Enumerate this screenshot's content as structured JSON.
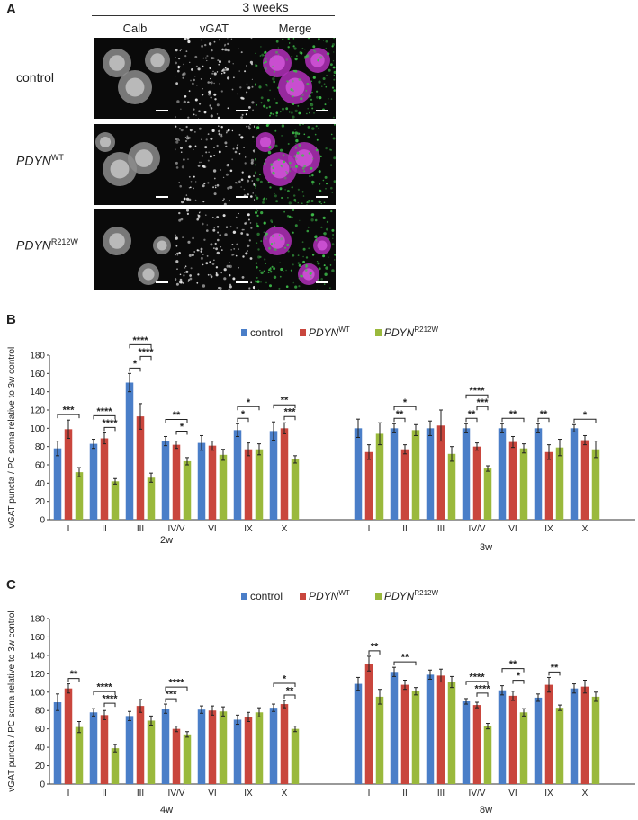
{
  "panelA": {
    "letter": "A",
    "header": "3 weeks",
    "columns": [
      "Calb",
      "vGAT",
      "Merge"
    ],
    "rows": [
      {
        "name": "control",
        "sup": ""
      },
      {
        "name": "PDYN",
        "sup": "WT"
      },
      {
        "name": "PDYN",
        "sup": "R212W"
      }
    ]
  },
  "panelB": {
    "letter": "B"
  },
  "panelC": {
    "letter": "C"
  },
  "legend": [
    {
      "name": "control",
      "sup": "",
      "italic": false,
      "color": "#4a7ec8"
    },
    {
      "name": "PDYN",
      "sup": "WT",
      "italic": true,
      "color": "#c9463d"
    },
    {
      "name": "PDYN",
      "sup": "R212W",
      "italic": true,
      "color": "#9ab93c"
    }
  ],
  "chart_data": [
    {
      "type": "bar",
      "ylabel": "vGAT puncta / PC soma relative to 3w control",
      "ylim": [
        0,
        180
      ],
      "yticks": [
        0,
        20,
        40,
        60,
        80,
        100,
        120,
        140,
        160,
        180
      ],
      "groups": [
        {
          "label": "2w",
          "categories": [
            "I",
            "II",
            "III",
            "IV/V",
            "VI",
            "IX",
            "X"
          ],
          "series": [
            {
              "name": "control",
              "values": [
                78,
                83,
                150,
                86,
                84,
                98,
                97
              ],
              "errors": [
                8,
                5,
                10,
                5,
                8,
                7,
                10
              ]
            },
            {
              "name": "PDYN WT",
              "values": [
                99,
                89,
                113,
                82,
                81,
                77,
                100
              ],
              "errors": [
                10,
                6,
                14,
                4,
                5,
                7,
                6
              ]
            },
            {
              "name": "PDYN R212W",
              "values": [
                52,
                42,
                46,
                64,
                71,
                77,
                66
              ],
              "errors": [
                5,
                3,
                5,
                4,
                6,
                6,
                4
              ]
            }
          ],
          "significance": [
            {
              "cat": 0,
              "pairs": [
                [
                  "control",
                  "PDYN R212W",
                  "***"
                ]
              ]
            },
            {
              "cat": 1,
              "pairs": [
                [
                  "control",
                  "PDYN R212W",
                  "****"
                ],
                [
                  "PDYN WT",
                  "PDYN R212W",
                  "****"
                ]
              ]
            },
            {
              "cat": 2,
              "pairs": [
                [
                  "control",
                  "PDYN WT",
                  "*"
                ],
                [
                  "control",
                  "PDYN R212W",
                  "****"
                ],
                [
                  "PDYN WT",
                  "PDYN R212W",
                  "****"
                ]
              ]
            },
            {
              "cat": 3,
              "pairs": [
                [
                  "control",
                  "PDYN R212W",
                  "**"
                ],
                [
                  "PDYN WT",
                  "PDYN R212W",
                  "*"
                ]
              ]
            },
            {
              "cat": 5,
              "pairs": [
                [
                  "control",
                  "PDYN WT",
                  "*"
                ],
                [
                  "control",
                  "PDYN R212W",
                  "*"
                ]
              ]
            },
            {
              "cat": 6,
              "pairs": [
                [
                  "control",
                  "PDYN R212W",
                  "**"
                ],
                [
                  "PDYN WT",
                  "PDYN R212W",
                  "***"
                ]
              ]
            }
          ]
        },
        {
          "label": "3w",
          "categories": [
            "I",
            "II",
            "III",
            "IV/V",
            "VI",
            "IX",
            "X"
          ],
          "series": [
            {
              "name": "control",
              "values": [
                100,
                100,
                100,
                100,
                100,
                100,
                100
              ],
              "errors": [
                10,
                5,
                8,
                5,
                5,
                5,
                4
              ]
            },
            {
              "name": "PDYN WT",
              "values": [
                74,
                77,
                103,
                80,
                85,
                74,
                87
              ],
              "errors": [
                8,
                5,
                17,
                4,
                6,
                8,
                5
              ]
            },
            {
              "name": "PDYN R212W",
              "values": [
                94,
                98,
                72,
                56,
                78,
                79,
                77
              ],
              "errors": [
                12,
                6,
                8,
                3,
                5,
                9,
                9
              ]
            }
          ],
          "significance": [
            {
              "cat": 1,
              "pairs": [
                [
                  "control",
                  "PDYN WT",
                  "**"
                ],
                [
                  "control",
                  "PDYN R212W",
                  "*"
                ]
              ]
            },
            {
              "cat": 3,
              "pairs": [
                [
                  "control",
                  "PDYN WT",
                  "**"
                ],
                [
                  "control",
                  "PDYN R212W",
                  "****"
                ],
                [
                  "PDYN WT",
                  "PDYN R212W",
                  "***"
                ]
              ]
            },
            {
              "cat": 4,
              "pairs": [
                [
                  "control",
                  "PDYN R212W",
                  "**"
                ]
              ]
            },
            {
              "cat": 5,
              "pairs": [
                [
                  "control",
                  "PDYN WT",
                  "**"
                ]
              ]
            },
            {
              "cat": 6,
              "pairs": [
                [
                  "control",
                  "PDYN R212W",
                  "*"
                ]
              ]
            }
          ]
        }
      ]
    },
    {
      "type": "bar",
      "ylabel": "vGAT puncta / PC soma relative to 3w control",
      "ylim": [
        0,
        180
      ],
      "yticks": [
        0,
        20,
        40,
        60,
        80,
        100,
        120,
        140,
        160,
        180
      ],
      "groups": [
        {
          "label": "4w",
          "categories": [
            "I",
            "II",
            "III",
            "IV/V",
            "VI",
            "IX",
            "X"
          ],
          "series": [
            {
              "name": "control",
              "values": [
                89,
                78,
                74,
                82,
                81,
                70,
                83
              ],
              "errors": [
                9,
                4,
                5,
                5,
                4,
                5,
                4
              ]
            },
            {
              "name": "PDYN WT",
              "values": [
                104,
                75,
                85,
                60,
                80,
                73,
                87
              ],
              "errors": [
                5,
                5,
                7,
                3,
                5,
                5,
                4
              ]
            },
            {
              "name": "PDYN R212W",
              "values": [
                62,
                39,
                69,
                54,
                79,
                78,
                60
              ],
              "errors": [
                6,
                4,
                5,
                3,
                5,
                5,
                3
              ]
            }
          ],
          "significance": [
            {
              "cat": 0,
              "pairs": [
                [
                  "PDYN WT",
                  "PDYN R212W",
                  "**"
                ]
              ]
            },
            {
              "cat": 1,
              "pairs": [
                [
                  "control",
                  "PDYN R212W",
                  "****"
                ],
                [
                  "PDYN WT",
                  "PDYN R212W",
                  "****"
                ]
              ]
            },
            {
              "cat": 3,
              "pairs": [
                [
                  "control",
                  "PDYN WT",
                  "***"
                ],
                [
                  "control",
                  "PDYN R212W",
                  "****"
                ]
              ]
            },
            {
              "cat": 6,
              "pairs": [
                [
                  "control",
                  "PDYN R212W",
                  "*"
                ],
                [
                  "PDYN WT",
                  "PDYN R212W",
                  "**"
                ]
              ]
            }
          ]
        },
        {
          "label": "8w",
          "categories": [
            "I",
            "II",
            "III",
            "IV/V",
            "VI",
            "IX",
            "X"
          ],
          "series": [
            {
              "name": "control",
              "values": [
                109,
                122,
                119,
                90,
                102,
                94,
                104
              ],
              "errors": [
                7,
                5,
                5,
                3,
                5,
                4,
                5
              ]
            },
            {
              "name": "PDYN WT",
              "values": [
                131,
                108,
                118,
                86,
                96,
                108,
                106
              ],
              "errors": [
                8,
                5,
                7,
                3,
                5,
                8,
                7
              ]
            },
            {
              "name": "PDYN R212W",
              "values": [
                95,
                101,
                111,
                63,
                78,
                83,
                95
              ],
              "errors": [
                8,
                4,
                6,
                3,
                4,
                3,
                5
              ]
            }
          ],
          "significance": [
            {
              "cat": 0,
              "pairs": [
                [
                  "PDYN WT",
                  "PDYN R212W",
                  "**"
                ]
              ]
            },
            {
              "cat": 1,
              "pairs": [
                [
                  "control",
                  "PDYN R212W",
                  "**"
                ]
              ]
            },
            {
              "cat": 3,
              "pairs": [
                [
                  "control",
                  "PDYN R212W",
                  "****"
                ],
                [
                  "PDYN WT",
                  "PDYN R212W",
                  "****"
                ]
              ]
            },
            {
              "cat": 4,
              "pairs": [
                [
                  "control",
                  "PDYN R212W",
                  "**"
                ],
                [
                  "PDYN WT",
                  "PDYN R212W",
                  "*"
                ]
              ]
            },
            {
              "cat": 5,
              "pairs": [
                [
                  "PDYN WT",
                  "PDYN R212W",
                  "**"
                ]
              ]
            }
          ]
        }
      ]
    }
  ]
}
